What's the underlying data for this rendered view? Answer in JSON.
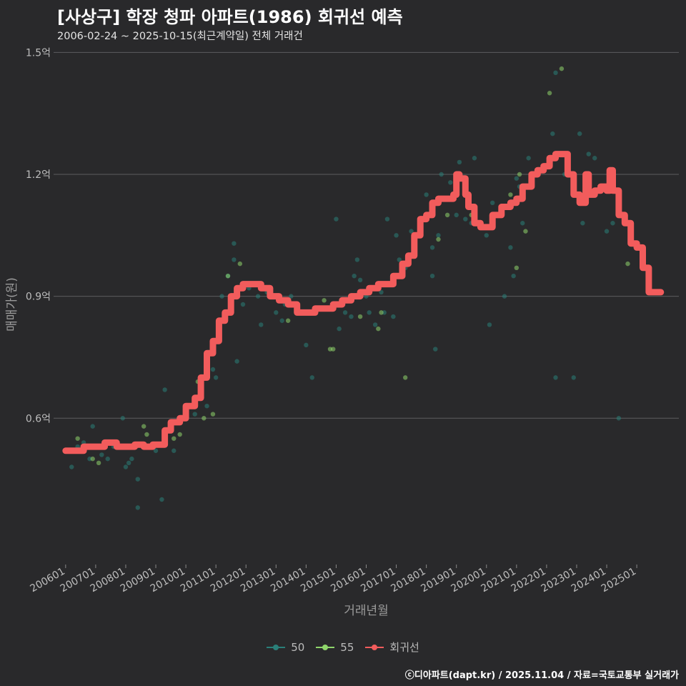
{
  "title": "[사상구] 학장 청파 아파트(1986) 회귀선 예측",
  "subtitle": "2006-02-24 ~ 2025-10-15(최근계약일) 전체 거래건",
  "footer": "ⓒ디아파트(dapt.kr) / 2025.11.04 / 자료=국토교통부 실거래가",
  "colors": {
    "background": "#29292b",
    "grid": "#5d5d5f",
    "series50": "#2a7f79",
    "series55": "#8fd56b",
    "regression": "#f25c5c"
  },
  "legend": [
    {
      "label": "50",
      "color": "#2a7f79"
    },
    {
      "label": "55",
      "color": "#8fd56b"
    },
    {
      "label": "회귀선",
      "color": "#f25c5c"
    }
  ],
  "chart_data": {
    "type": "scatter+line",
    "ylabel": "매매가(원)",
    "xlabel": "거래년월",
    "ylim": [
      0.24,
      1.52
    ],
    "xlim": [
      2005.6,
      2026.4
    ],
    "yticks": [
      0.6,
      0.9,
      1.2,
      1.5
    ],
    "ytick_labels": [
      "0.6억",
      "0.9억",
      "1.2억",
      "1.5억"
    ],
    "xticks": [
      2006,
      2007,
      2008,
      2009,
      2010,
      2011,
      2012,
      2013,
      2014,
      2015,
      2016,
      2017,
      2018,
      2019,
      2020,
      2021,
      2022,
      2023,
      2024,
      2025
    ],
    "xtick_labels": [
      "200601",
      "200701",
      "200801",
      "200901",
      "201001",
      "201101",
      "201201",
      "201301",
      "201401",
      "201501",
      "201601",
      "201701",
      "201801",
      "201901",
      "202001",
      "202101",
      "202201",
      "202301",
      "202401",
      "202501"
    ],
    "grid": true,
    "legend_position": "bottom",
    "series": [
      {
        "name": "50",
        "points": [
          [
            2006.1,
            0.52
          ],
          [
            2006.2,
            0.48
          ],
          [
            2006.4,
            0.53
          ],
          [
            2006.6,
            0.54
          ],
          [
            2006.8,
            0.5
          ],
          [
            2006.9,
            0.58
          ],
          [
            2007.2,
            0.51
          ],
          [
            2007.4,
            0.5
          ],
          [
            2007.6,
            0.53
          ],
          [
            2007.9,
            0.6
          ],
          [
            2008.0,
            0.48
          ],
          [
            2008.1,
            0.49
          ],
          [
            2008.2,
            0.5
          ],
          [
            2008.4,
            0.45
          ],
          [
            2008.4,
            0.38
          ],
          [
            2008.8,
            0.53
          ],
          [
            2009.0,
            0.52
          ],
          [
            2009.2,
            0.4
          ],
          [
            2009.3,
            0.67
          ],
          [
            2009.6,
            0.52
          ],
          [
            2009.9,
            0.6
          ],
          [
            2010.1,
            0.63
          ],
          [
            2010.3,
            0.61
          ],
          [
            2010.7,
            0.63
          ],
          [
            2010.9,
            0.72
          ],
          [
            2011.0,
            0.7
          ],
          [
            2011.2,
            0.9
          ],
          [
            2011.4,
            0.95
          ],
          [
            2011.6,
            1.03
          ],
          [
            2011.6,
            0.99
          ],
          [
            2011.7,
            0.74
          ],
          [
            2011.9,
            0.88
          ],
          [
            2012.1,
            0.92
          ],
          [
            2012.4,
            0.9
          ],
          [
            2012.5,
            0.83
          ],
          [
            2012.7,
            0.91
          ],
          [
            2013.0,
            0.86
          ],
          [
            2013.2,
            0.84
          ],
          [
            2013.3,
            0.88
          ],
          [
            2013.5,
            0.9
          ],
          [
            2013.7,
            0.88
          ],
          [
            2013.9,
            0.86
          ],
          [
            2014.0,
            0.78
          ],
          [
            2014.2,
            0.7
          ],
          [
            2014.6,
            0.87
          ],
          [
            2014.9,
            0.87
          ],
          [
            2015.0,
            1.09
          ],
          [
            2015.1,
            0.82
          ],
          [
            2015.3,
            0.86
          ],
          [
            2015.5,
            0.85
          ],
          [
            2015.6,
            0.95
          ],
          [
            2015.7,
            0.99
          ],
          [
            2015.8,
            0.94
          ],
          [
            2016.0,
            0.9
          ],
          [
            2016.1,
            0.86
          ],
          [
            2016.3,
            0.83
          ],
          [
            2016.5,
            0.91
          ],
          [
            2016.6,
            0.86
          ],
          [
            2016.7,
            1.09
          ],
          [
            2016.9,
            0.85
          ],
          [
            2017.0,
            1.05
          ],
          [
            2017.1,
            0.99
          ],
          [
            2017.3,
            0.97
          ],
          [
            2017.5,
            1.06
          ],
          [
            2018.0,
            1.15
          ],
          [
            2018.2,
            0.95
          ],
          [
            2018.2,
            1.02
          ],
          [
            2018.3,
            0.77
          ],
          [
            2018.4,
            1.05
          ],
          [
            2018.5,
            1.2
          ],
          [
            2018.8,
            1.18
          ],
          [
            2019.0,
            1.1
          ],
          [
            2019.1,
            1.23
          ],
          [
            2019.3,
            1.09
          ],
          [
            2019.5,
            1.08
          ],
          [
            2019.6,
            1.24
          ],
          [
            2020.0,
            1.05
          ],
          [
            2020.1,
            0.83
          ],
          [
            2020.2,
            1.13
          ],
          [
            2020.6,
            0.9
          ],
          [
            2020.8,
            1.02
          ],
          [
            2020.9,
            0.95
          ],
          [
            2021.0,
            1.19
          ],
          [
            2021.1,
            1.17
          ],
          [
            2021.2,
            1.08
          ],
          [
            2021.4,
            1.24
          ],
          [
            2022.0,
            1.22
          ],
          [
            2022.2,
            1.3
          ],
          [
            2022.3,
            0.7
          ],
          [
            2022.3,
            1.45
          ],
          [
            2022.6,
            1.2
          ],
          [
            2022.9,
            0.7
          ],
          [
            2023.1,
            1.3
          ],
          [
            2023.2,
            1.08
          ],
          [
            2023.4,
            1.25
          ],
          [
            2023.6,
            1.24
          ],
          [
            2024.0,
            1.06
          ],
          [
            2024.2,
            1.08
          ],
          [
            2024.4,
            0.6
          ]
        ]
      },
      {
        "name": "55",
        "points": [
          [
            2006.4,
            0.55
          ],
          [
            2006.9,
            0.5
          ],
          [
            2007.1,
            0.49
          ],
          [
            2008.6,
            0.58
          ],
          [
            2008.7,
            0.56
          ],
          [
            2009.6,
            0.55
          ],
          [
            2009.8,
            0.56
          ],
          [
            2010.4,
            0.69
          ],
          [
            2010.6,
            0.6
          ],
          [
            2010.9,
            0.61
          ],
          [
            2011.4,
            0.95
          ],
          [
            2011.8,
            0.98
          ],
          [
            2012.0,
            0.93
          ],
          [
            2013.4,
            0.84
          ],
          [
            2014.6,
            0.89
          ],
          [
            2014.8,
            0.77
          ],
          [
            2014.9,
            0.77
          ],
          [
            2015.8,
            0.85
          ],
          [
            2016.4,
            0.82
          ],
          [
            2016.5,
            0.86
          ],
          [
            2017.3,
            0.7
          ],
          [
            2018.4,
            1.04
          ],
          [
            2018.7,
            1.1
          ],
          [
            2019.5,
            1.1
          ],
          [
            2020.8,
            1.15
          ],
          [
            2021.0,
            0.97
          ],
          [
            2021.1,
            1.2
          ],
          [
            2021.3,
            1.06
          ],
          [
            2021.6,
            1.2
          ],
          [
            2022.1,
            1.4
          ],
          [
            2022.5,
            1.46
          ],
          [
            2024.7,
            0.98
          ]
        ]
      },
      {
        "name": "회귀선",
        "points": [
          [
            2006.0,
            0.52
          ],
          [
            2006.3,
            0.52
          ],
          [
            2006.6,
            0.53
          ],
          [
            2007.0,
            0.53
          ],
          [
            2007.3,
            0.54
          ],
          [
            2007.6,
            0.54
          ],
          [
            2007.7,
            0.53
          ],
          [
            2008.0,
            0.53
          ],
          [
            2008.3,
            0.535
          ],
          [
            2008.6,
            0.53
          ],
          [
            2008.9,
            0.535
          ],
          [
            2009.2,
            0.535
          ],
          [
            2009.3,
            0.57
          ],
          [
            2009.5,
            0.59
          ],
          [
            2009.8,
            0.6
          ],
          [
            2010.0,
            0.63
          ],
          [
            2010.3,
            0.65
          ],
          [
            2010.5,
            0.7
          ],
          [
            2010.7,
            0.76
          ],
          [
            2010.9,
            0.79
          ],
          [
            2011.1,
            0.84
          ],
          [
            2011.3,
            0.86
          ],
          [
            2011.5,
            0.9
          ],
          [
            2011.7,
            0.92
          ],
          [
            2011.9,
            0.93
          ],
          [
            2012.2,
            0.93
          ],
          [
            2012.5,
            0.92
          ],
          [
            2012.8,
            0.9
          ],
          [
            2013.1,
            0.89
          ],
          [
            2013.4,
            0.88
          ],
          [
            2013.7,
            0.86
          ],
          [
            2013.9,
            0.86
          ],
          [
            2014.1,
            0.86
          ],
          [
            2014.3,
            0.87
          ],
          [
            2014.6,
            0.87
          ],
          [
            2014.9,
            0.88
          ],
          [
            2015.2,
            0.89
          ],
          [
            2015.5,
            0.9
          ],
          [
            2015.8,
            0.91
          ],
          [
            2016.1,
            0.92
          ],
          [
            2016.4,
            0.93
          ],
          [
            2016.7,
            0.93
          ],
          [
            2016.9,
            0.95
          ],
          [
            2017.2,
            0.98
          ],
          [
            2017.4,
            1.0
          ],
          [
            2017.6,
            1.05
          ],
          [
            2017.8,
            1.09
          ],
          [
            2018.0,
            1.1
          ],
          [
            2018.2,
            1.13
          ],
          [
            2018.4,
            1.14
          ],
          [
            2018.7,
            1.14
          ],
          [
            2018.9,
            1.15
          ],
          [
            2019.0,
            1.2
          ],
          [
            2019.1,
            1.19
          ],
          [
            2019.3,
            1.15
          ],
          [
            2019.4,
            1.12
          ],
          [
            2019.6,
            1.08
          ],
          [
            2019.8,
            1.07
          ],
          [
            2020.0,
            1.07
          ],
          [
            2020.2,
            1.1
          ],
          [
            2020.5,
            1.12
          ],
          [
            2020.8,
            1.13
          ],
          [
            2021.0,
            1.14
          ],
          [
            2021.2,
            1.17
          ],
          [
            2021.5,
            1.2
          ],
          [
            2021.7,
            1.21
          ],
          [
            2021.9,
            1.22
          ],
          [
            2022.1,
            1.24
          ],
          [
            2022.3,
            1.25
          ],
          [
            2022.5,
            1.25
          ],
          [
            2022.7,
            1.2
          ],
          [
            2022.9,
            1.15
          ],
          [
            2023.1,
            1.13
          ],
          [
            2023.3,
            1.2
          ],
          [
            2023.4,
            1.15
          ],
          [
            2023.6,
            1.16
          ],
          [
            2023.8,
            1.17
          ],
          [
            2024.0,
            1.16
          ],
          [
            2024.1,
            1.21
          ],
          [
            2024.2,
            1.16
          ],
          [
            2024.4,
            1.1
          ],
          [
            2024.6,
            1.08
          ],
          [
            2024.8,
            1.03
          ],
          [
            2025.0,
            1.02
          ],
          [
            2025.2,
            0.97
          ],
          [
            2025.4,
            0.91
          ],
          [
            2025.6,
            0.91
          ],
          [
            2025.8,
            0.91
          ]
        ]
      }
    ]
  }
}
